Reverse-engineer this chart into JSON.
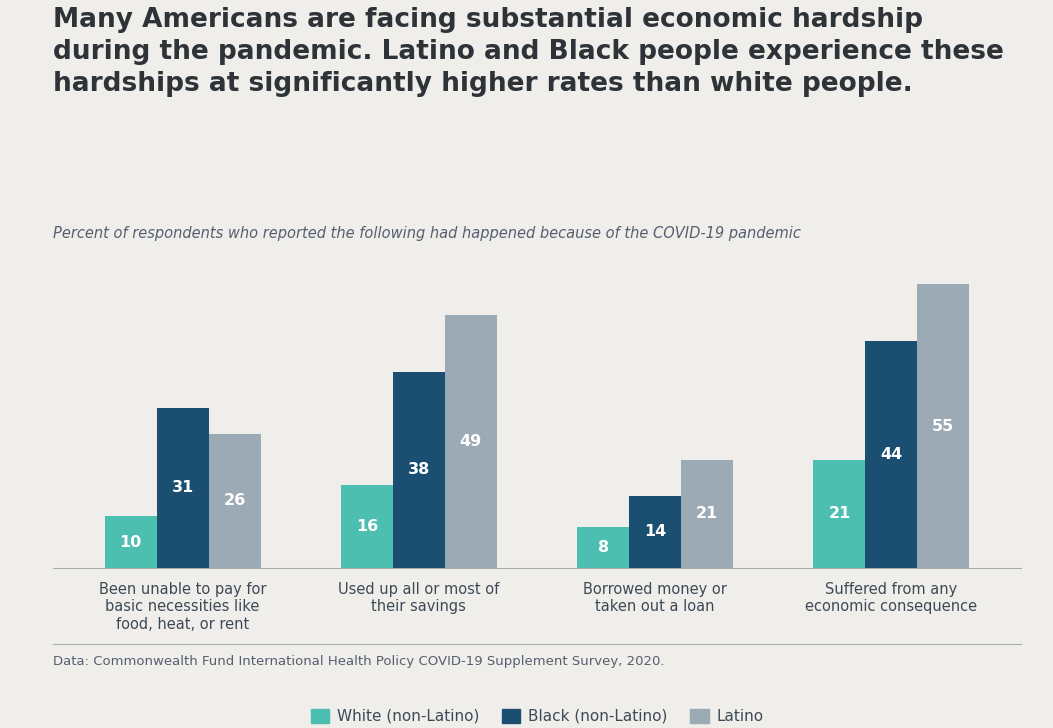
{
  "title_line1": "Many Americans are facing substantial economic hardship",
  "title_line2": "during the pandemic. Latino and Black people experience these",
  "title_line3": "hardships at significantly higher rates than white people.",
  "subtitle": "Percent of respondents who reported the following had happened because of the COVID-19 pandemic",
  "footnote": "Data: Commonwealth Fund International Health Policy COVID-19 Supplement Survey, 2020.",
  "categories": [
    "Been unable to pay for\nbasic necessities like\nfood, heat, or rent",
    "Used up all or most of\ntheir savings",
    "Borrowed money or\ntaken out a loan",
    "Suffered from any\neconomic consequence"
  ],
  "series": {
    "White (non-Latino)": [
      10,
      16,
      8,
      21
    ],
    "Black (non-Latino)": [
      31,
      38,
      14,
      44
    ],
    "Latino": [
      26,
      49,
      21,
      55
    ]
  },
  "colors": {
    "White (non-Latino)": "#4dbfb0",
    "Black (non-Latino)": "#1b4f72",
    "Latino": "#9baab5"
  },
  "background_color": "#f0eeeb",
  "title_color": "#2e3338",
  "subtitle_color": "#555f6e",
  "bar_label_color": "#ffffff",
  "footnote_color": "#555f6e",
  "ylim": [
    0,
    65
  ],
  "bar_width": 0.22
}
